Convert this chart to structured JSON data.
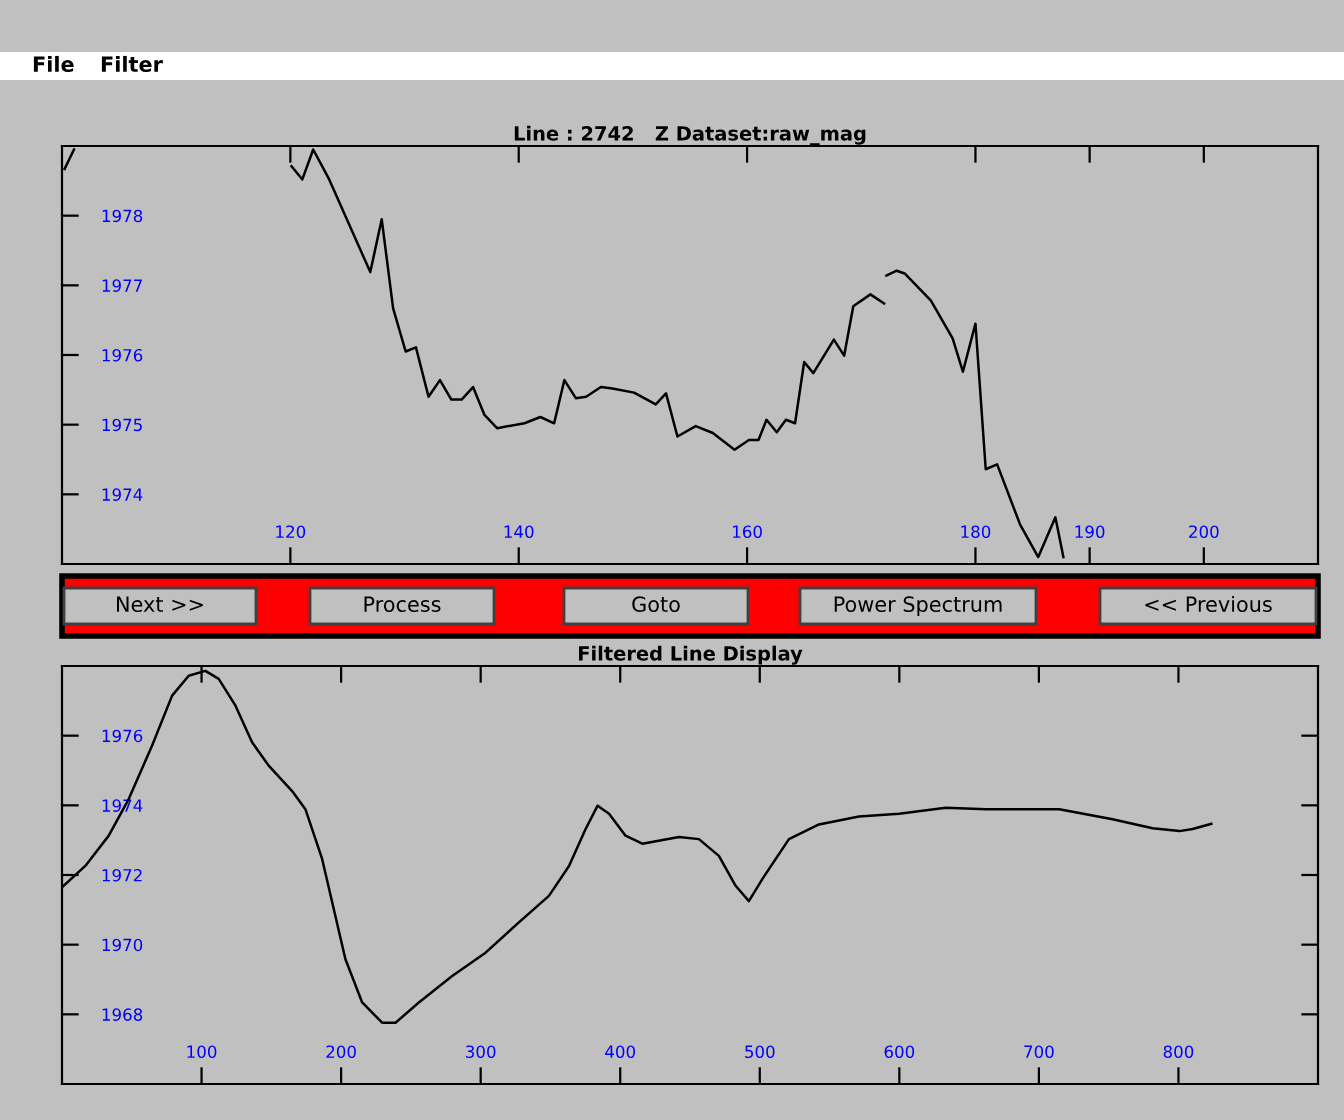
{
  "chart_data": [
    {
      "type": "line",
      "title": "Line : 2742   Z Dataset:raw_mag",
      "annotations": [
        "File",
        "Filter"
      ],
      "x": [
        100.22,
        101.05,
        110,
        120.1,
        121.05,
        122.0,
        123.4,
        127.0,
        128.0,
        129.0,
        130.1,
        131.0,
        132.1,
        133.1,
        134.1,
        135.0,
        136.0,
        137.0,
        138.1,
        140.5,
        141.9,
        143.1,
        144.0,
        145.0,
        145.9,
        147.2,
        148.2,
        150.1,
        152.0,
        152.9,
        153.9,
        155.5,
        157.0,
        158.9,
        160.16,
        161.0,
        161.7,
        162.6,
        163.4,
        164.2,
        165.0,
        165.8,
        167.6,
        168.5,
        169.3,
        170.8,
        172.0,
        172.1,
        172.2,
        173.1,
        173.8,
        176.1,
        178.0,
        178.9,
        180.0,
        180.9,
        181.9,
        183.9,
        185.5,
        187.0,
        187.7
      ],
      "series": [
        {
          "color": "#000000",
          "values": [
            1978.67,
            1978.95,
            null,
            1978.71,
            1978.52,
            1978.95,
            1978.52,
            1977.19,
            1977.95,
            1976.67,
            1976.05,
            1976.11,
            1975.4,
            1975.64,
            1975.36,
            1975.36,
            1975.54,
            1975.14,
            1974.95,
            1975.02,
            1975.11,
            1975.02,
            1975.64,
            1975.38,
            1975.4,
            1975.54,
            1975.52,
            1975.46,
            1975.29,
            1975.45,
            1974.83,
            1974.98,
            1974.88,
            1974.64,
            1974.78,
            1974.78,
            1975.07,
            1974.89,
            1975.07,
            1975.02,
            1975.9,
            1975.74,
            1976.22,
            1975.99,
            1976.7,
            1976.87,
            1976.74,
            null,
            1977.14,
            1977.21,
            1977.17,
            1976.78,
            1976.24,
            1975.76,
            1976.45,
            1974.36,
            1974.43,
            1973.57,
            1973.1,
            1973.67,
            1973.1
          ]
        }
      ],
      "xlim": [
        100,
        210
      ],
      "ylim": [
        1973,
        1979
      ],
      "xticks": [
        120,
        140,
        160,
        180,
        190,
        200
      ],
      "yticks": [
        1974,
        1975,
        1976,
        1977,
        1978
      ]
    },
    {
      "type": "line",
      "title": "Filtered Line Display",
      "annotations": [
        "Next >>",
        "Process",
        "Goto",
        "Power Spectrum",
        "<< Previous"
      ],
      "x": [
        0,
        16.7,
        33.5,
        47.8,
        64.5,
        78.9,
        90.8,
        102.7,
        112.3,
        124.3,
        136.2,
        148.1,
        164.9,
        174.4,
        186.4,
        203.1,
        215.1,
        229.4,
        239.0,
        255.7,
        279.6,
        303.5,
        327.4,
        348.9,
        363.3,
        375.2,
        383.8,
        392.0,
        403.8,
        415.8,
        442.1,
        456.4,
        470.7,
        482.7,
        492.2,
        501.8,
        520.9,
        542.4,
        571.1,
        599.8,
        633.3,
        662.0,
        714.6,
        752.8,
        781.5,
        800.7,
        810.2,
        823.5
      ],
      "series": [
        {
          "color": "#000000",
          "values": [
            1971.65,
            1972.26,
            1973.13,
            1974.18,
            1975.71,
            1977.15,
            1977.72,
            1977.86,
            1977.63,
            1976.86,
            1975.81,
            1975.14,
            1974.41,
            1973.89,
            1972.46,
            1969.58,
            1968.34,
            1967.76,
            1967.76,
            1968.34,
            1969.1,
            1969.77,
            1970.64,
            1971.4,
            1972.26,
            1973.32,
            1973.99,
            1973.76,
            1973.13,
            1972.9,
            1973.09,
            1973.03,
            1972.55,
            1971.69,
            1971.25,
            1971.88,
            1973.03,
            1973.45,
            1973.68,
            1973.76,
            1973.93,
            1973.89,
            1973.89,
            1973.6,
            1973.34,
            1973.26,
            1973.32,
            1973.47
          ]
        }
      ],
      "xlim": [
        0,
        900
      ],
      "ylim": [
        1966,
        1978
      ],
      "xticks": [
        100,
        200,
        300,
        400,
        500,
        600,
        700,
        800
      ],
      "yticks": [
        1968,
        1970,
        1972,
        1974,
        1976
      ]
    }
  ]
}
